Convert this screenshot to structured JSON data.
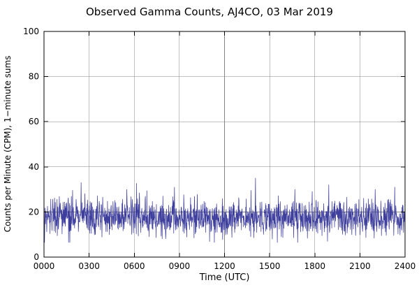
{
  "chart_data": {
    "type": "line",
    "title": "Observed Gamma Counts, AJ4CO, 03 Mar 2019",
    "xlabel": "Time (UTC)",
    "ylabel": "Counts per Minute (CPM), 1−minute sums",
    "ylim": [
      0,
      100
    ],
    "xlim_minutes": [
      0,
      1440
    ],
    "y_ticks": [
      {
        "value": 0,
        "label": "0"
      },
      {
        "value": 20,
        "label": "20"
      },
      {
        "value": 40,
        "label": "40"
      },
      {
        "value": 60,
        "label": "60"
      },
      {
        "value": 80,
        "label": "80"
      },
      {
        "value": 100,
        "label": "100"
      }
    ],
    "x_ticks": [
      {
        "minute": 0,
        "label": "0000"
      },
      {
        "minute": 180,
        "label": "0300"
      },
      {
        "minute": 360,
        "label": "0600"
      },
      {
        "minute": 540,
        "label": "0900"
      },
      {
        "minute": 720,
        "label": "1200"
      },
      {
        "minute": 900,
        "label": "1500"
      },
      {
        "minute": 1080,
        "label": "1800"
      },
      {
        "minute": 1260,
        "label": "2100"
      },
      {
        "minute": 1440,
        "label": "2400"
      }
    ],
    "grid": true,
    "colors": {
      "series": "#3e3e9d",
      "grid": "#858585",
      "axis": "#000000",
      "background": "#ffffff"
    },
    "series": [
      {
        "name": "observed-gamma-counts",
        "points_per_day": 1440,
        "baseline_mean_cpm": 17.5,
        "noise_std_cpm": 3.9,
        "min_cpm": 6.5,
        "max_cpm": 35,
        "seed": 20190303,
        "spikes": [
          {
            "minute": 148,
            "cpm": 33
          },
          {
            "minute": 330,
            "cpm": 30
          },
          {
            "minute": 520,
            "cpm": 31
          },
          {
            "minute": 843,
            "cpm": 35
          },
          {
            "minute": 1000,
            "cpm": 30
          },
          {
            "minute": 1135,
            "cpm": 32
          },
          {
            "minute": 1320,
            "cpm": 30
          },
          {
            "minute": 1398,
            "cpm": 31
          }
        ]
      }
    ]
  }
}
